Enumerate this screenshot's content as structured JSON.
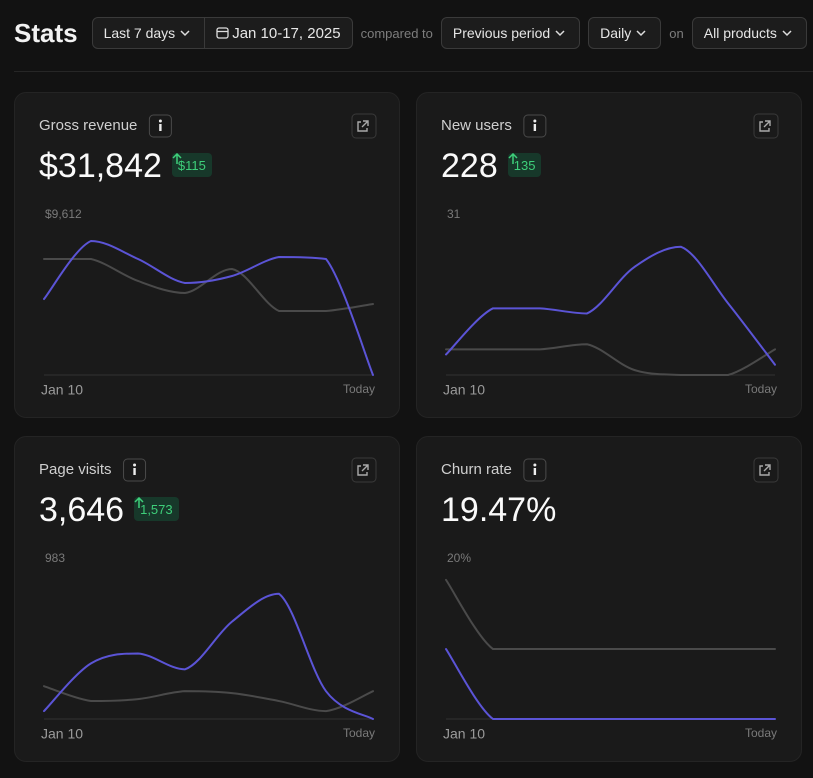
{
  "header": {
    "title": "Stats",
    "range": "Last 7 days",
    "dates": "Jan 10-17, 2025",
    "compared_label": "compared to",
    "compare": "Previous period",
    "interval": "Daily",
    "on_label": "on",
    "products": "All products"
  },
  "cards": [
    {
      "title": "Gross revenue",
      "value": "$31,842",
      "change": "$115",
      "start_label": "Jan 10",
      "end_label": "Today",
      "chart": {
        "type": "line",
        "ylim": [
          0,
          9612
        ],
        "yticks": [
          {
            "value": 9612,
            "label": "$9,612"
          }
        ],
        "series": [
          {
            "color": "#4a4a4a",
            "values": [
              7012,
              7012,
              5683,
              4957,
              6408,
              3869,
              3869,
              4292
            ]
          },
          {
            "color": "#5b54d6",
            "values": [
              4594,
              8101,
              7012,
              5562,
              5985,
              7133,
              7012,
              0
            ]
          }
        ]
      }
    },
    {
      "title": "New users",
      "value": "228",
      "change": "135",
      "start_label": "Jan 10",
      "end_label": "Today",
      "chart": {
        "type": "line",
        "ylim": [
          0,
          31
        ],
        "yticks": [
          31
        ],
        "series": [
          {
            "color": "#4a4a4a",
            "values": [
              5,
              5,
              5,
              6,
              1,
              0,
              0,
              5
            ]
          },
          {
            "color": "#5b54d6",
            "values": [
              4,
              13,
              13,
              12,
              21,
              25,
              14,
              2
            ]
          }
        ]
      }
    },
    {
      "title": "Page visits",
      "value": "3,646",
      "change": "1,573",
      "start_label": "Jan 10",
      "end_label": "Today",
      "chart": {
        "type": "line",
        "ylim": [
          0,
          983
        ],
        "yticks": [
          983
        ],
        "series": [
          {
            "color": "#4a4a4a",
            "values": [
              203,
              111,
              123,
              172,
              160,
              111,
              49,
              172
            ]
          },
          {
            "color": "#5b54d6",
            "values": [
              49,
              344,
              405,
              307,
              602,
              774,
              172,
              0
            ]
          }
        ]
      }
    },
    {
      "title": "Churn rate",
      "value": "19.47%",
      "start_label": "Jan 10",
      "end_label": "Today",
      "chart": {
        "type": "line",
        "ylim": [
          0,
          20
        ],
        "yticks": [
          {
            "value": 20,
            "label": "20%"
          }
        ],
        "series": [
          {
            "color": "#4a4a4a",
            "values": [
              17.5,
              8.8,
              8.8,
              8.8,
              8.8,
              8.8,
              8.8,
              8.8
            ]
          },
          {
            "color": "#5b54d6",
            "values": [
              8.8,
              0,
              0,
              0,
              0,
              0,
              0,
              0
            ]
          }
        ]
      }
    }
  ]
}
